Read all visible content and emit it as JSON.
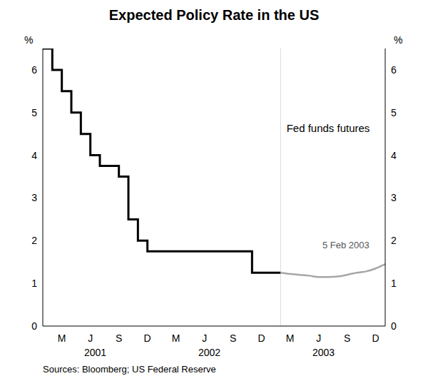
{
  "chart_data": {
    "type": "line",
    "title": "Expected Policy Rate in the US",
    "ylabel": "%",
    "source": "Sources: Bloomberg; US Federal Reserve",
    "categories": [
      null,
      null,
      "M",
      null,
      null,
      "J",
      null,
      null,
      "S",
      null,
      null,
      "D",
      null,
      null,
      "M",
      null,
      null,
      "J",
      null,
      null,
      "S",
      null,
      null,
      "D",
      null,
      null,
      "M",
      null,
      null,
      "J",
      null,
      null,
      "S",
      null,
      null,
      "D",
      null
    ],
    "x_group_labels": [
      "2001",
      "2002",
      "2003"
    ],
    "series": [
      {
        "color": "#000000",
        "line_style": "step",
        "values": [
          6.5,
          6.0,
          5.5,
          5.0,
          4.5,
          4.0,
          3.75,
          3.75,
          3.5,
          2.5,
          2.0,
          1.75,
          1.75,
          1.75,
          1.75,
          1.75,
          1.75,
          1.75,
          1.75,
          1.75,
          1.75,
          1.75,
          1.25,
          1.25,
          1.25,
          1.25,
          null,
          null,
          null,
          null,
          null,
          null,
          null,
          null,
          null,
          null,
          null
        ]
      },
      {
        "name": "Fed funds futures",
        "color": "#a6a6a6",
        "line_style": "solid",
        "values": [
          null,
          null,
          null,
          null,
          null,
          null,
          null,
          null,
          null,
          null,
          null,
          null,
          null,
          null,
          null,
          null,
          null,
          null,
          null,
          null,
          null,
          null,
          null,
          null,
          null,
          1.25,
          1.22,
          1.2,
          1.18,
          1.15,
          1.15,
          1.16,
          1.2,
          1.25,
          1.28,
          1.35,
          1.45
        ]
      }
    ],
    "annotations": [
      "5 Feb 2003"
    ],
    "ylim": [
      0,
      6.5
    ],
    "yticks": [
      0,
      1,
      2,
      3,
      4,
      5,
      6
    ],
    "grid": false
  }
}
